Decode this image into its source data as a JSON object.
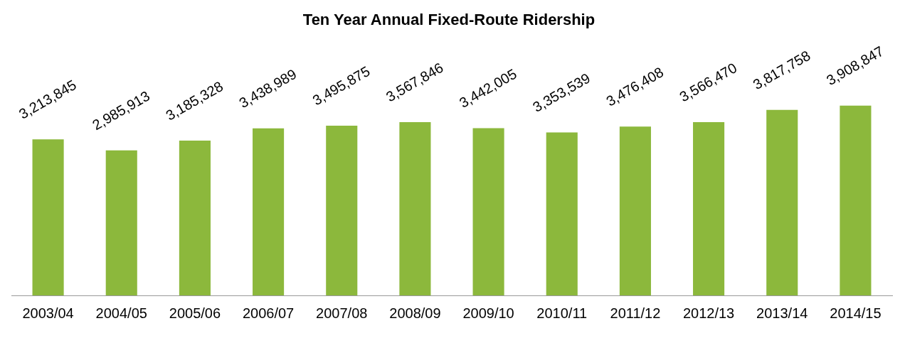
{
  "chart_data": {
    "type": "bar",
    "title": "Ten Year Annual Fixed-Route Ridership",
    "categories": [
      "2003/04",
      "2004/05",
      "2005/06",
      "2006/07",
      "2007/08",
      "2008/09",
      "2009/10",
      "2010/11",
      "2011/12",
      "2012/13",
      "2013/14",
      "2014/15"
    ],
    "values": [
      3213845,
      2985913,
      3185328,
      3438989,
      3495875,
      3567846,
      3442005,
      3353539,
      3476408,
      3566470,
      3817758,
      3908847
    ],
    "value_labels": [
      "3,213,845",
      "2,985,913",
      "3,185,328",
      "3,438,989",
      "3,495,875",
      "3,567,846",
      "3,442,005",
      "3,353,539",
      "3,476,408",
      "3,566,470",
      "3,817,758",
      "3,908,847"
    ],
    "color": "#8cb83c",
    "relative": false,
    "grid": false,
    "legend": false
  }
}
